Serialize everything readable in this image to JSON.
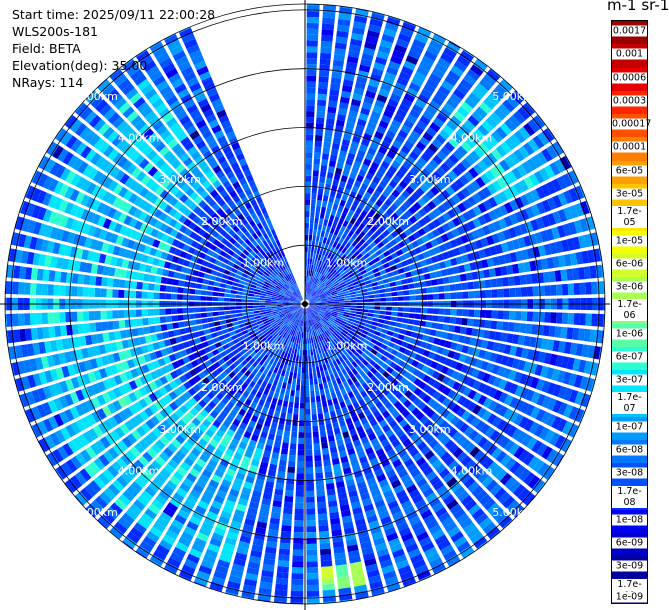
{
  "info": {
    "start_time": "Start time: 2025/09/11 22:00:28",
    "instrument": "WLS200s-181",
    "field": "Field: BETA",
    "elevation": "Elevation(deg): 35.00",
    "nrays": "NRays: 114"
  },
  "colorbar": {
    "title": "m-1 sr-1",
    "labels": [
      "0.0017",
      "0.001",
      "0.0006",
      "0.0003",
      "0.00017",
      "0.0001",
      "6e-05",
      "3e-05",
      "1.7e-05",
      "1e-05",
      "6e-06",
      "3e-06",
      "1.7e-06",
      "1e-06",
      "6e-07",
      "3e-07",
      "1.7e-07",
      "1e-07",
      "6e-08",
      "3e-08",
      "1.7e-08",
      "1e-08",
      "6e-09",
      "3e-09",
      "1.7e-09",
      "1e-09"
    ],
    "colors": [
      "#9b0000",
      "#c40000",
      "#e60000",
      "#ff2600",
      "#ff5000",
      "#ff7f00",
      "#ffa000",
      "#ffc400",
      "#ffe600",
      "#f4ff00",
      "#d2ff2c",
      "#aaff55",
      "#82ff7c",
      "#58ffa8",
      "#2dffd2",
      "#00e6ff",
      "#00c2ff",
      "#009cff",
      "#0078ff",
      "#0052ff",
      "#002cff",
      "#0000f0",
      "#0000c8",
      "#00009f",
      "#000076"
    ]
  },
  "chart_data": {
    "type": "heatmap",
    "projection": "polar-ppi",
    "field": "BETA",
    "units": "m-1 sr-1",
    "elevation_deg": 35.0,
    "n_rays": 114,
    "range_rings_km": [
      1.0,
      2.0,
      3.0,
      4.0,
      5.0
    ],
    "ring_labels": [
      "1.00km",
      "2.00km",
      "3.00km",
      "4.00km",
      "5.00km"
    ],
    "max_range_km": 5.1,
    "missing_sector_deg": [
      337,
      360
    ],
    "color_scale": "log",
    "value_range": [
      1e-09,
      0.0017
    ],
    "typical_values": {
      "near_range": 1.5e-08,
      "mid_range": 3e-08,
      "enhanced_band_west_2.5_4.5km": 1.7e-07,
      "enhanced_patch_northeast_4km": 1.7e-07,
      "hotspot_south_4.5km": 1.7e-06
    }
  }
}
